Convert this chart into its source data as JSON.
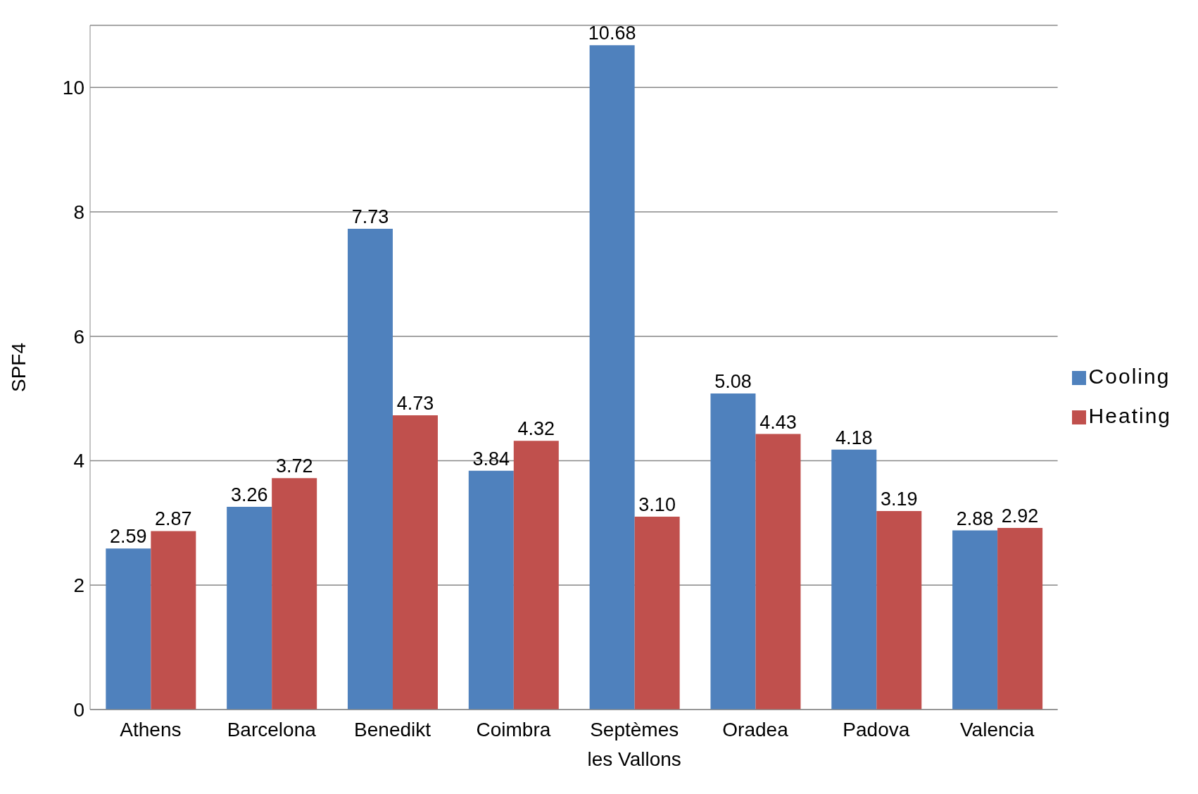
{
  "chart_data": {
    "type": "bar",
    "ylabel": "SPF4",
    "categories": [
      "Athens",
      "Barcelona",
      "Benedikt",
      "Coimbra",
      "Septèmes les Vallons",
      "Oradea",
      "Padova",
      "Valencia"
    ],
    "series": [
      {
        "name": "Cooling",
        "color": "#4f81bd",
        "values": [
          2.59,
          3.26,
          7.73,
          3.84,
          10.68,
          5.08,
          4.18,
          2.88
        ],
        "value_labels": [
          "2.59",
          "3.26",
          "7.73",
          "3.84",
          "10.68",
          "5.08",
          "4.18",
          "2.88"
        ]
      },
      {
        "name": "Heating",
        "color": "#c0504d",
        "values": [
          2.87,
          3.72,
          4.73,
          4.32,
          3.1,
          4.43,
          3.19,
          2.92
        ],
        "value_labels": [
          "2.87",
          "3.72",
          "4.73",
          "4.32",
          "3.10",
          "4.43",
          "3.19",
          "2.92"
        ]
      }
    ],
    "ylim": [
      0,
      11
    ],
    "yticks": [
      0,
      2,
      4,
      6,
      8,
      10
    ],
    "grid": "y",
    "legend": "right"
  }
}
